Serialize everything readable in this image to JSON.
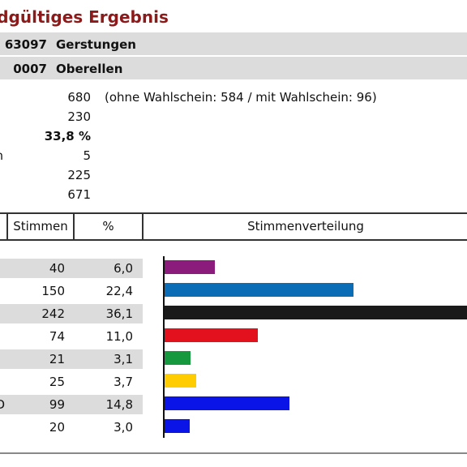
{
  "title": "ndgültiges Ergebnis",
  "title_color": "#8b1a1a",
  "header_rows": [
    {
      "code": "63097",
      "name": "Gerstungen"
    },
    {
      "code": "0007",
      "name": "Oberellen"
    }
  ],
  "stats": [
    {
      "label": "",
      "value": "680",
      "note": "(ohne Wahlschein: 584 / mit Wahlschein: 96)",
      "bold": false
    },
    {
      "label": "",
      "value": "230",
      "note": "",
      "bold": false
    },
    {
      "label": "",
      "value": "33,8 %",
      "note": "",
      "bold": true
    },
    {
      "label": "n",
      "value": "5",
      "note": "",
      "bold": false
    },
    {
      "label": "",
      "value": "225",
      "note": "",
      "bold": false
    },
    {
      "label": "",
      "value": "671",
      "note": "",
      "bold": false
    }
  ],
  "table_header": {
    "votes": "Stimmen",
    "percent": "%",
    "distribution": "Stimmenverteilung"
  },
  "bar_max_percent": 36.1,
  "results": [
    {
      "label": "",
      "votes": "40",
      "percent": "6,0",
      "value": 6.0,
      "color": "#8b1c7c",
      "shade": true
    },
    {
      "label": "",
      "votes": "150",
      "percent": "22,4",
      "value": 22.4,
      "color": "#0a6db5",
      "shade": false
    },
    {
      "label": "",
      "votes": "242",
      "percent": "36,1",
      "value": 36.1,
      "color": "#1a1a1a",
      "shade": true
    },
    {
      "label": "",
      "votes": "74",
      "percent": "11,0",
      "value": 11.0,
      "color": "#e3101d",
      "shade": false
    },
    {
      "label": "",
      "votes": "21",
      "percent": "3,1",
      "value": 3.1,
      "color": "#16983e",
      "shade": true
    },
    {
      "label": "",
      "votes": "25",
      "percent": "3,7",
      "value": 3.7,
      "color": "#ffcc00",
      "shade": false
    },
    {
      "label": "D",
      "votes": "99",
      "percent": "14,8",
      "value": 14.8,
      "color": "#0a14e6",
      "shade": true
    },
    {
      "label": "",
      "votes": "20",
      "percent": "3,0",
      "value": 3.0,
      "color": "#0a14e6",
      "shade": false
    }
  ]
}
